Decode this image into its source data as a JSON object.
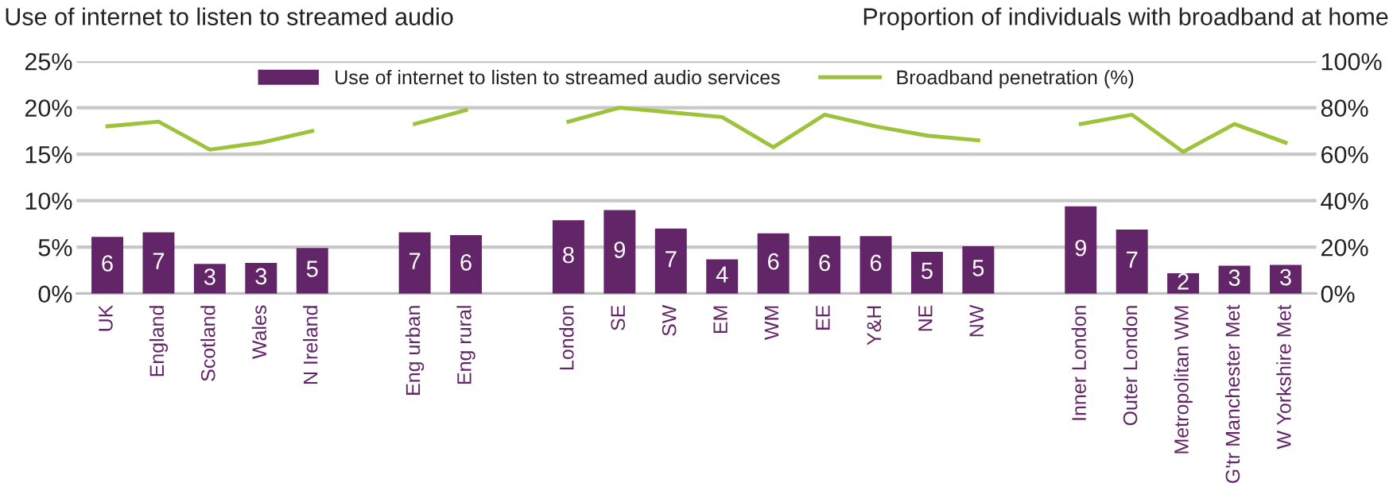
{
  "chart_data": {
    "type": "bar",
    "ylabel": "Use of internet to listen to streamed audio",
    "y2label": "Proportion of individuals with broadband at home",
    "categories": [
      "UK",
      "England",
      "Scotland",
      "Wales",
      "N Ireland",
      null,
      "Eng urban",
      "Eng rural",
      null,
      "London",
      "SE",
      "SW",
      "EM",
      "WM",
      "EE",
      "Y&H",
      "NE",
      "NW",
      null,
      "Inner London",
      "Outer London",
      "Metropolitan WM",
      "G'tr Manchester Met",
      "W Yorkshire Met"
    ],
    "series": [
      {
        "name": "Use of internet to listen to streamed audio services",
        "color": "#622567",
        "values": [
          6.1,
          6.6,
          3.2,
          3.3,
          4.9,
          null,
          6.6,
          6.3,
          null,
          7.9,
          9.0,
          7.0,
          3.7,
          6.5,
          6.2,
          6.2,
          4.5,
          5.1,
          null,
          9.4,
          6.9,
          2.2,
          3.0,
          3.1
        ],
        "value_labels": [
          "6",
          "7",
          "3",
          "3",
          "5",
          null,
          "7",
          "6",
          null,
          "8",
          "9",
          "7",
          "4",
          "6",
          "6",
          "6",
          "5",
          "5",
          null,
          "9",
          "7",
          "2",
          "3",
          "3"
        ]
      },
      {
        "name": "Broadband penetration (%)",
        "type": "line",
        "axis": "y2",
        "color": "#9dc33b",
        "values": [
          72,
          74,
          62,
          65,
          70,
          null,
          73,
          79,
          null,
          74,
          80,
          78,
          76,
          63,
          77,
          72,
          68,
          66,
          null,
          73,
          77,
          61,
          73,
          65
        ]
      }
    ],
    "ylim": [
      0,
      25
    ],
    "yticks": [
      {
        "value": 0,
        "label": "0%"
      },
      {
        "value": 5,
        "label": "5%"
      },
      {
        "value": 10,
        "label": "10%"
      },
      {
        "value": 15,
        "label": "15%"
      },
      {
        "value": 20,
        "label": "20%"
      },
      {
        "value": 25,
        "label": "25%"
      }
    ],
    "y2lim": [
      0,
      100
    ],
    "y2ticks": [
      {
        "value": 0,
        "label": "0%"
      },
      {
        "value": 20,
        "label": "20%"
      },
      {
        "value": 40,
        "label": "40%"
      },
      {
        "value": 60,
        "label": "60%"
      },
      {
        "value": 80,
        "label": "80%"
      },
      {
        "value": 100,
        "label": "100%"
      }
    ],
    "grid": "y",
    "legend": "top",
    "marker": "none",
    "line_style": "solid"
  }
}
